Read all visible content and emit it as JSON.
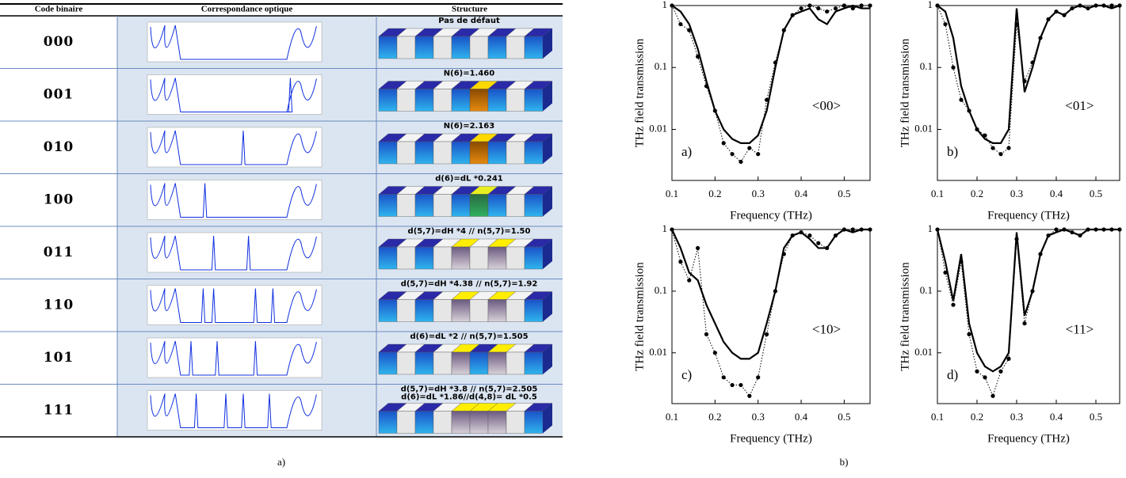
{
  "table": {
    "headers": [
      "Code binaire",
      "Correspondance optique",
      "Structure"
    ],
    "rows": [
      {
        "code": "000",
        "structure": [
          "Pas de défaut"
        ]
      },
      {
        "code": "001",
        "structure": [
          "N(6)=1.460"
        ]
      },
      {
        "code": "010",
        "structure": [
          "N(6)=2.163"
        ]
      },
      {
        "code": "100",
        "structure": [
          "d(6)=dL *0.241"
        ]
      },
      {
        "code": "011",
        "structure": [
          "d(5,7)=dH *4 // n(5,7)=1.50"
        ]
      },
      {
        "code": "110",
        "structure": [
          "d(5,7)=dH *4.38 // n(5,7)=1.92"
        ]
      },
      {
        "code": "101",
        "structure": [
          "d(6)=dL *2 // n(5,7)=1.505"
        ]
      },
      {
        "code": "111",
        "structure": [
          "d(5,7)=dH *3.8 // n(5,7)=2.505",
          "d(6)=dL *1.86//d(4,8)= dL *0.5"
        ]
      }
    ]
  },
  "captions": [
    "a)",
    "b)"
  ],
  "chart_data": [
    {
      "type": "line",
      "panel": "a)",
      "annotation": "<00>",
      "x_label": "Frequency (THz)",
      "y_label": "THz field transmission",
      "log_y": true,
      "x": [
        0.1,
        0.12,
        0.14,
        0.16,
        0.18,
        0.2,
        0.22,
        0.24,
        0.26,
        0.28,
        0.3,
        0.32,
        0.34,
        0.36,
        0.38,
        0.4,
        0.42,
        0.44,
        0.46,
        0.48,
        0.5,
        0.52,
        0.54,
        0.56
      ],
      "series": [
        {
          "color": "#000000",
          "linestyle": "solid",
          "values": [
            1,
            0.8,
            0.5,
            0.2,
            0.06,
            0.02,
            0.01,
            0.007,
            0.006,
            0.006,
            0.008,
            0.02,
            0.1,
            0.4,
            0.7,
            0.8,
            0.9,
            0.6,
            0.5,
            0.8,
            0.9,
            1,
            0.9,
            0.9
          ]
        },
        {
          "color": "#000000",
          "linestyle": "dotted",
          "marker": "circle",
          "values": [
            1,
            0.5,
            0.4,
            0.15,
            0.05,
            0.02,
            0.006,
            0.004,
            0.003,
            0.005,
            0.004,
            0.03,
            0.12,
            0.4,
            0.7,
            0.9,
            1,
            0.9,
            0.8,
            0.9,
            1,
            0.9,
            1,
            1
          ]
        }
      ],
      "xlim": [
        0.1,
        0.56
      ],
      "ylim": [
        0.0015,
        1
      ],
      "xticks": [
        0.1,
        0.2,
        0.3,
        0.4,
        0.5
      ],
      "yticks": [
        1,
        0.1,
        0.01
      ]
    },
    {
      "type": "line",
      "panel": "b)",
      "annotation": "<01>",
      "x_label": "Frequency (THz)",
      "y_label": "THz field transmission",
      "log_y": true,
      "x": [
        0.1,
        0.12,
        0.14,
        0.16,
        0.18,
        0.2,
        0.22,
        0.24,
        0.26,
        0.28,
        0.3,
        0.32,
        0.34,
        0.36,
        0.38,
        0.4,
        0.42,
        0.44,
        0.46,
        0.48,
        0.5,
        0.52,
        0.54,
        0.56
      ],
      "series": [
        {
          "color": "#000000",
          "linestyle": "solid",
          "values": [
            1,
            0.8,
            0.3,
            0.05,
            0.02,
            0.01,
            0.007,
            0.006,
            0.006,
            0.01,
            0.9,
            0.04,
            0.1,
            0.3,
            0.6,
            0.8,
            0.7,
            0.9,
            1,
            0.9,
            1,
            1,
            0.9,
            1
          ]
        },
        {
          "color": "#000000",
          "linestyle": "dotted",
          "marker": "circle",
          "values": [
            1,
            0.5,
            0.1,
            0.03,
            0.02,
            0.01,
            0.008,
            0.005,
            0.004,
            0.005,
            0.5,
            0.06,
            0.12,
            0.3,
            0.6,
            0.8,
            0.7,
            0.9,
            1,
            0.9,
            1,
            1,
            1,
            1
          ]
        }
      ],
      "xlim": [
        0.1,
        0.56
      ],
      "ylim": [
        0.0015,
        1
      ],
      "xticks": [
        0.1,
        0.2,
        0.3,
        0.4,
        0.5
      ],
      "yticks": [
        1,
        0.1,
        0.01
      ]
    },
    {
      "type": "line",
      "panel": "c)",
      "annotation": "<10>",
      "x_label": "Frequency (THz)",
      "y_label": "THz field transmission",
      "log_y": true,
      "x": [
        0.1,
        0.12,
        0.14,
        0.16,
        0.18,
        0.2,
        0.22,
        0.24,
        0.26,
        0.28,
        0.3,
        0.32,
        0.34,
        0.36,
        0.38,
        0.4,
        0.42,
        0.44,
        0.46,
        0.48,
        0.5,
        0.52,
        0.54,
        0.56
      ],
      "series": [
        {
          "color": "#000000",
          "linestyle": "solid",
          "values": [
            1,
            0.5,
            0.2,
            0.15,
            0.06,
            0.03,
            0.015,
            0.01,
            0.008,
            0.008,
            0.01,
            0.03,
            0.1,
            0.5,
            0.8,
            0.9,
            0.7,
            0.5,
            0.5,
            0.8,
            1,
            0.9,
            1,
            1
          ]
        },
        {
          "color": "#000000",
          "linestyle": "dotted",
          "marker": "circle",
          "values": [
            1,
            0.3,
            0.15,
            0.5,
            0.02,
            0.01,
            0.004,
            0.003,
            0.003,
            0.002,
            0.004,
            0.02,
            0.1,
            0.4,
            0.8,
            0.9,
            0.8,
            0.6,
            0.5,
            0.8,
            1,
            1,
            1,
            1
          ]
        }
      ],
      "xlim": [
        0.1,
        0.56
      ],
      "ylim": [
        0.0015,
        1
      ],
      "xticks": [
        0.1,
        0.2,
        0.3,
        0.4,
        0.5
      ],
      "yticks": [
        1,
        0.1,
        0.01
      ]
    },
    {
      "type": "line",
      "panel": "d)",
      "annotation": "<11>",
      "x_label": "Frequency (THz)",
      "y_label": "THz field transmission",
      "log_y": true,
      "x": [
        0.1,
        0.12,
        0.14,
        0.16,
        0.18,
        0.2,
        0.22,
        0.24,
        0.26,
        0.28,
        0.3,
        0.32,
        0.34,
        0.36,
        0.38,
        0.4,
        0.42,
        0.44,
        0.46,
        0.48,
        0.5,
        0.52,
        0.54,
        0.56
      ],
      "series": [
        {
          "color": "#000000",
          "linestyle": "solid",
          "values": [
            1,
            0.3,
            0.07,
            0.4,
            0.03,
            0.01,
            0.006,
            0.005,
            0.006,
            0.01,
            0.9,
            0.04,
            0.1,
            0.4,
            0.8,
            0.9,
            1,
            0.9,
            0.8,
            1,
            1,
            1,
            1,
            1
          ]
        },
        {
          "color": "#000000",
          "linestyle": "dotted",
          "marker": "circle",
          "values": [
            1,
            0.2,
            0.06,
            0.3,
            0.02,
            0.005,
            0.004,
            0.002,
            0.005,
            0.008,
            0.7,
            0.03,
            0.1,
            0.4,
            0.8,
            1,
            1,
            0.9,
            0.8,
            1,
            1,
            1,
            1,
            1
          ]
        }
      ],
      "xlim": [
        0.1,
        0.56
      ],
      "ylim": [
        0.0015,
        1
      ],
      "xticks": [
        0.1,
        0.2,
        0.3,
        0.4,
        0.5
      ],
      "yticks": [
        1,
        0.1,
        0.01
      ]
    }
  ]
}
